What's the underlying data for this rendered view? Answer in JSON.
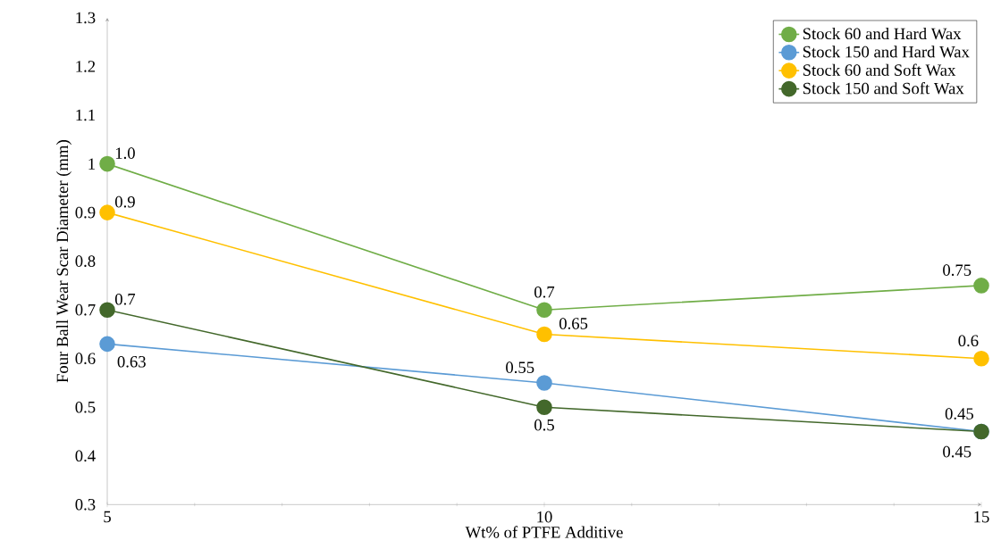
{
  "chart_data": {
    "type": "line",
    "xlabel": "Wt% of PTFE Additive",
    "ylabel": "Four Ball Wear Scar Diameter (mm)",
    "x": [
      5,
      10,
      15
    ],
    "xlim": [
      5,
      15
    ],
    "xticks": [
      5,
      10,
      15
    ],
    "ylim": [
      0.3,
      1.3
    ],
    "yticks": [
      0.3,
      0.4,
      0.5,
      0.6,
      0.7,
      0.8,
      0.9,
      {
        "value": 1,
        "label": "1"
      },
      1.1,
      1.2,
      1.3
    ],
    "grid": false,
    "legend": "top right",
    "marker": "circle",
    "line_style": "solid",
    "series": [
      {
        "name": "Stock 60 and Hard Wax",
        "color": "#70ad47",
        "values": [
          1.0,
          0.7,
          0.75
        ],
        "value_labels": [
          "1.0",
          "0.7",
          "0.75"
        ]
      },
      {
        "name": "Stock 150 and Hard Wax",
        "color": "#5b9bd5",
        "values": [
          0.63,
          0.55,
          0.45
        ],
        "value_labels": [
          "0.63",
          "0.55",
          "0.45"
        ]
      },
      {
        "name": "Stock 60 and Soft Wax",
        "color": "#ffc000",
        "values": [
          0.9,
          0.65,
          0.6
        ],
        "value_labels": [
          "0.9",
          "0.65",
          "0.6"
        ]
      },
      {
        "name": "Stock 150 and Soft Wax",
        "color": "#43682b",
        "values": [
          0.7,
          0.5,
          0.45
        ],
        "value_labels": [
          "0.7",
          "0.5",
          "0.45"
        ]
      }
    ]
  }
}
